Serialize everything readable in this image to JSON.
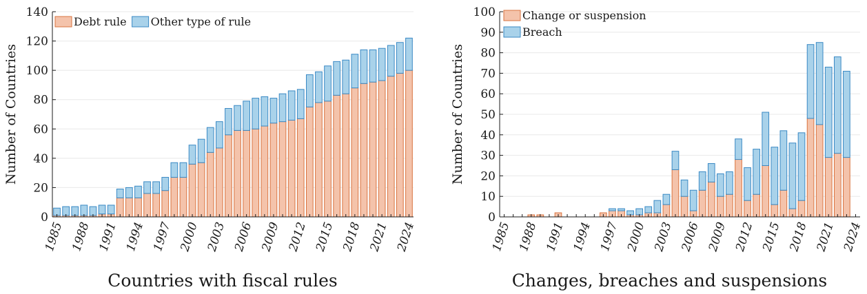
{
  "colors": {
    "debt_fill": "#F4C3AB",
    "debt_stroke": "#D9733F",
    "other_fill": "#A9D2EA",
    "other_stroke": "#3A89C4",
    "axis": "#1a1a1a",
    "grid": "#e8e8e8"
  },
  "chart_data": [
    {
      "type": "bar",
      "stacked": true,
      "title": "Countries with fiscal rules",
      "xlabel": "",
      "ylabel": "Number of Countries",
      "ylim": [
        0,
        140
      ],
      "yticks": [
        0,
        20,
        40,
        60,
        80,
        100,
        120,
        140
      ],
      "grid": true,
      "legend_placement": "top-left, horizontal",
      "x": [
        1985,
        1986,
        1987,
        1988,
        1989,
        1990,
        1991,
        1992,
        1993,
        1994,
        1995,
        1996,
        1997,
        1998,
        1999,
        2000,
        2001,
        2002,
        2003,
        2004,
        2005,
        2006,
        2007,
        2008,
        2009,
        2010,
        2011,
        2012,
        2013,
        2014,
        2015,
        2016,
        2017,
        2018,
        2019,
        2020,
        2021,
        2022,
        2023,
        2024
      ],
      "xticks": [
        "1985",
        "1988",
        "1991",
        "1994",
        "1997",
        "2000",
        "2003",
        "2006",
        "2009",
        "2012",
        "2015",
        "2018",
        "2021",
        "2024"
      ],
      "series": [
        {
          "name": "Debt rule",
          "values": [
            1,
            1,
            1,
            1,
            1,
            2,
            2,
            13,
            13,
            13,
            16,
            16,
            18,
            27,
            27,
            36,
            37,
            44,
            47,
            56,
            59,
            59,
            60,
            62,
            64,
            65,
            66,
            67,
            75,
            78,
            79,
            83,
            84,
            88,
            91,
            92,
            93,
            96,
            98,
            100
          ]
        },
        {
          "name": "Other type of rule",
          "values": [
            5,
            6,
            6,
            7,
            6,
            6,
            6,
            6,
            7,
            8,
            8,
            8,
            9,
            10,
            10,
            13,
            16,
            17,
            18,
            18,
            17,
            20,
            21,
            20,
            17,
            19,
            20,
            20,
            22,
            21,
            24,
            23,
            23,
            23,
            23,
            22,
            22,
            21,
            21,
            22
          ]
        }
      ]
    },
    {
      "type": "bar",
      "stacked": true,
      "title": "Changes, breaches and suspensions",
      "xlabel": "",
      "ylabel": "Number of Countries",
      "ylim": [
        0,
        100
      ],
      "yticks": [
        0,
        10,
        20,
        30,
        40,
        50,
        60,
        70,
        80,
        90,
        100
      ],
      "grid": true,
      "legend_placement": "top-left, vertical",
      "x": [
        1985,
        1986,
        1987,
        1988,
        1989,
        1990,
        1991,
        1992,
        1993,
        1994,
        1995,
        1996,
        1997,
        1998,
        1999,
        2000,
        2001,
        2002,
        2003,
        2004,
        2005,
        2006,
        2007,
        2008,
        2009,
        2010,
        2011,
        2012,
        2013,
        2014,
        2015,
        2016,
        2017,
        2018,
        2019,
        2020,
        2021,
        2022,
        2023,
        2024
      ],
      "xticks": [
        "1985",
        "1988",
        "1991",
        "1994",
        "1997",
        "2000",
        "2003",
        "2006",
        "2009",
        "2012",
        "2015",
        "2018",
        "2021",
        "2024"
      ],
      "series": [
        {
          "name": "Change or suspension",
          "values": [
            0,
            0,
            0,
            1,
            1,
            0,
            2,
            0,
            0,
            0,
            0,
            2,
            3,
            3,
            1,
            1,
            2,
            2,
            6,
            23,
            10,
            3,
            13,
            17,
            10,
            11,
            28,
            8,
            11,
            25,
            6,
            13,
            4,
            8,
            48,
            45,
            29,
            31,
            29,
            0
          ]
        },
        {
          "name": "Breach",
          "values": [
            0,
            0,
            0,
            0,
            0,
            0,
            0,
            0,
            0,
            0,
            0,
            0,
            1,
            1,
            2,
            3,
            3,
            6,
            5,
            9,
            8,
            10,
            9,
            9,
            11,
            11,
            10,
            16,
            22,
            26,
            28,
            29,
            32,
            33,
            36,
            40,
            44,
            47,
            42,
            0
          ]
        }
      ]
    }
  ]
}
